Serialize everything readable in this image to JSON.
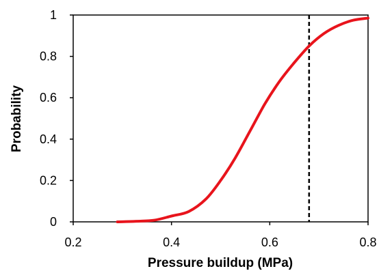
{
  "chart_data": {
    "type": "line",
    "title": "",
    "xlabel": "Pressure buildup (MPa)",
    "ylabel": "Probability",
    "xlim": [
      0.2,
      0.8
    ],
    "ylim": [
      0,
      1
    ],
    "x_ticks": [
      "0.2",
      "0.4",
      "0.6",
      "0.8"
    ],
    "y_ticks": [
      "0",
      "0.2",
      "0.4",
      "0.6",
      "0.8",
      "1"
    ],
    "grid": false,
    "legend": "none",
    "series": [
      {
        "color": "#e8141c",
        "x": [
          0.29,
          0.33,
          0.365,
          0.4,
          0.435,
          0.47,
          0.5,
          0.53,
          0.56,
          0.59,
          0.62,
          0.65,
          0.68,
          0.71,
          0.74,
          0.77,
          0.8
        ],
        "y": [
          0.0,
          0.003,
          0.008,
          0.028,
          0.05,
          0.11,
          0.2,
          0.31,
          0.44,
          0.57,
          0.68,
          0.77,
          0.85,
          0.91,
          0.95,
          0.975,
          0.985
        ]
      }
    ],
    "reference_line": {
      "x": 0.68,
      "color": "#000000",
      "style": "dashed"
    }
  }
}
